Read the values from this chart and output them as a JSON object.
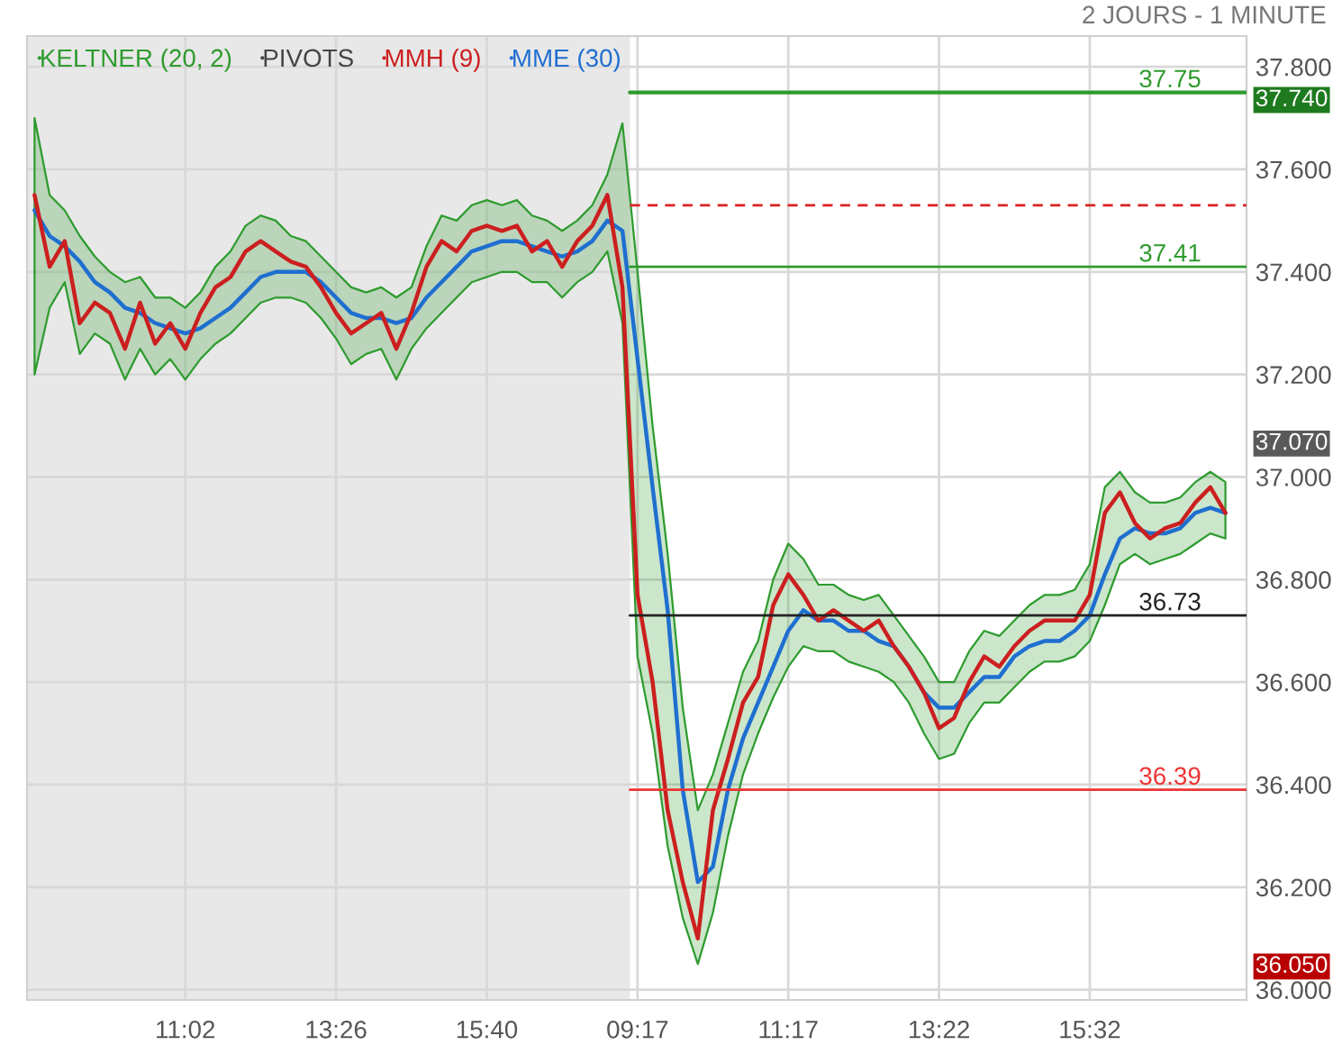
{
  "chart_data": {
    "type": "line",
    "subtitle": "2 JOURS - 1 MINUTE",
    "categories": [
      null,
      null,
      null,
      null,
      null,
      null,
      null,
      null,
      null,
      null,
      "11:02",
      null,
      null,
      null,
      null,
      null,
      null,
      null,
      null,
      null,
      "13:26",
      null,
      null,
      null,
      null,
      null,
      null,
      null,
      null,
      null,
      "15:40",
      null,
      null,
      null,
      null,
      null,
      null,
      null,
      null,
      null,
      "09:17",
      null,
      null,
      null,
      null,
      null,
      null,
      null,
      null,
      null,
      "11:17",
      null,
      null,
      null,
      null,
      null,
      null,
      null,
      null,
      null,
      "13:22",
      null,
      null,
      null,
      null,
      null,
      null,
      null,
      null,
      null,
      "15:32",
      null,
      null,
      null,
      null,
      null,
      null,
      null,
      null,
      null
    ],
    "ylim": [
      35.98,
      37.86
    ],
    "yticks": [
      {
        "value": 36.0,
        "label": "36.000"
      },
      {
        "value": 36.05,
        "label": "36.050"
      },
      {
        "value": 36.2,
        "label": "36.200"
      },
      {
        "value": 36.4,
        "label": "36.400"
      },
      {
        "value": 36.6,
        "label": "36.600"
      },
      {
        "value": 36.8,
        "label": "36.800"
      },
      {
        "value": 37.0,
        "label": "37.000"
      },
      {
        "value": 37.07,
        "label": "37.070"
      },
      {
        "value": 37.2,
        "label": "37.200"
      },
      {
        "value": 37.4,
        "label": "37.400"
      },
      {
        "value": 37.6,
        "label": "37.600"
      },
      {
        "value": 37.74,
        "label": "37.740"
      },
      {
        "value": 37.8,
        "label": "37.800"
      }
    ],
    "series": [
      {
        "name": "KELTNER (20, 2)",
        "color": "#2e9b2e",
        "values": [
          null,
          null,
          null,
          null,
          null,
          null,
          null,
          null,
          null,
          null,
          null,
          null,
          null,
          null,
          null,
          null,
          null,
          null,
          null,
          null,
          null,
          null,
          null,
          null,
          null,
          null,
          null,
          null,
          null,
          null,
          null,
          null,
          null,
          null,
          null,
          null,
          null,
          null,
          null,
          null,
          null,
          null,
          null,
          null,
          null,
          null,
          null,
          null,
          null,
          null,
          null,
          null,
          null,
          null,
          null,
          null,
          null,
          null,
          null,
          null,
          null,
          null,
          null,
          null,
          null,
          null,
          null,
          null,
          null,
          null,
          null,
          null,
          null,
          null,
          null,
          null,
          null,
          null,
          null,
          null
        ],
        "upper": [
          37.7,
          37.55,
          37.52,
          37.47,
          37.43,
          37.4,
          37.38,
          37.39,
          37.35,
          37.35,
          37.33,
          37.36,
          37.41,
          37.44,
          37.49,
          37.51,
          37.5,
          37.47,
          37.46,
          37.43,
          37.4,
          37.37,
          37.36,
          37.37,
          37.35,
          37.37,
          37.45,
          37.51,
          37.5,
          37.53,
          37.54,
          37.53,
          37.54,
          37.51,
          37.5,
          37.48,
          37.5,
          37.53,
          37.59,
          37.69,
          37.4,
          37.1,
          36.85,
          36.55,
          36.35,
          36.42,
          36.52,
          36.62,
          36.68,
          36.8,
          36.87,
          36.84,
          36.79,
          36.79,
          36.77,
          36.76,
          36.77,
          36.73,
          36.69,
          36.65,
          36.6,
          36.6,
          36.66,
          36.7,
          36.69,
          36.72,
          36.75,
          36.77,
          36.77,
          36.78,
          36.83,
          36.98,
          37.01,
          36.97,
          36.95,
          36.95,
          36.96,
          36.99,
          37.01,
          36.99
        ],
        "lower": [
          37.2,
          37.33,
          37.38,
          37.24,
          37.28,
          37.26,
          37.19,
          37.25,
          37.2,
          37.23,
          37.19,
          37.23,
          37.26,
          37.28,
          37.31,
          37.34,
          37.35,
          37.35,
          37.34,
          37.31,
          37.27,
          37.22,
          37.24,
          37.25,
          37.19,
          37.25,
          37.29,
          37.32,
          37.35,
          37.38,
          37.39,
          37.4,
          37.4,
          37.38,
          37.38,
          37.35,
          37.38,
          37.4,
          37.44,
          37.3,
          36.65,
          36.5,
          36.28,
          36.14,
          36.05,
          36.15,
          36.3,
          36.42,
          36.5,
          36.57,
          36.63,
          36.67,
          36.66,
          36.66,
          36.64,
          36.63,
          36.62,
          36.6,
          36.56,
          36.5,
          36.45,
          36.46,
          36.52,
          36.56,
          36.56,
          36.59,
          36.62,
          36.64,
          36.64,
          36.65,
          36.68,
          36.75,
          36.83,
          36.85,
          36.83,
          36.84,
          36.85,
          36.87,
          36.89,
          36.88
        ]
      },
      {
        "name": "MMH (9)",
        "color": "#cc1f1f",
        "values": [
          37.55,
          37.41,
          37.46,
          37.3,
          37.34,
          37.32,
          37.25,
          37.34,
          37.26,
          37.3,
          37.25,
          37.32,
          37.37,
          37.39,
          37.44,
          37.46,
          37.44,
          37.42,
          37.41,
          37.37,
          37.32,
          37.28,
          37.3,
          37.32,
          37.25,
          37.32,
          37.41,
          37.46,
          37.44,
          37.48,
          37.49,
          37.48,
          37.49,
          37.44,
          37.46,
          37.41,
          37.46,
          37.49,
          37.55,
          37.37,
          36.77,
          36.6,
          36.35,
          36.21,
          36.1,
          36.35,
          36.45,
          36.56,
          36.61,
          36.75,
          36.81,
          36.77,
          36.72,
          36.74,
          36.72,
          36.7,
          36.72,
          36.67,
          36.63,
          36.58,
          36.51,
          36.53,
          36.6,
          36.65,
          36.63,
          36.67,
          36.7,
          36.72,
          36.72,
          36.72,
          36.77,
          36.93,
          36.97,
          36.91,
          36.88,
          36.9,
          36.91,
          36.95,
          36.98,
          36.93
        ]
      },
      {
        "name": "MME (30)",
        "color": "#1f6fd0",
        "values": [
          37.52,
          37.47,
          37.45,
          37.42,
          37.38,
          37.36,
          37.33,
          37.32,
          37.3,
          37.29,
          37.28,
          37.29,
          37.31,
          37.33,
          37.36,
          37.39,
          37.4,
          37.4,
          37.4,
          37.38,
          37.35,
          37.32,
          37.31,
          37.31,
          37.3,
          37.31,
          37.35,
          37.38,
          37.41,
          37.44,
          37.45,
          37.46,
          37.46,
          37.45,
          37.44,
          37.43,
          37.44,
          37.46,
          37.5,
          37.48,
          37.23,
          36.98,
          36.74,
          36.39,
          36.21,
          36.24,
          36.39,
          36.49,
          36.56,
          36.63,
          36.7,
          36.74,
          36.72,
          36.72,
          36.7,
          36.7,
          36.68,
          36.67,
          36.63,
          36.58,
          36.55,
          36.55,
          36.58,
          36.61,
          36.61,
          36.65,
          36.67,
          36.68,
          36.68,
          36.7,
          36.73,
          36.81,
          36.88,
          36.9,
          36.89,
          36.89,
          36.9,
          36.93,
          36.94,
          36.93
        ]
      }
    ],
    "ref_lines": [
      {
        "axis": "y",
        "value": 37.75,
        "label": "37.75",
        "color": "#2e9b2e"
      },
      {
        "axis": "y",
        "value": 37.53,
        "color": "#dd2222",
        "line_style": "dashed"
      },
      {
        "axis": "y",
        "value": 37.41,
        "label": "37.41",
        "color": "#2e9b2e"
      },
      {
        "axis": "y",
        "value": 36.73,
        "label": "36.73",
        "color": "#222222"
      },
      {
        "axis": "y",
        "value": 36.39,
        "label": "36.39",
        "color": "#ee3333"
      }
    ],
    "annotations": [
      "PIVOTS"
    ],
    "grid": true,
    "legend": "top left"
  }
}
